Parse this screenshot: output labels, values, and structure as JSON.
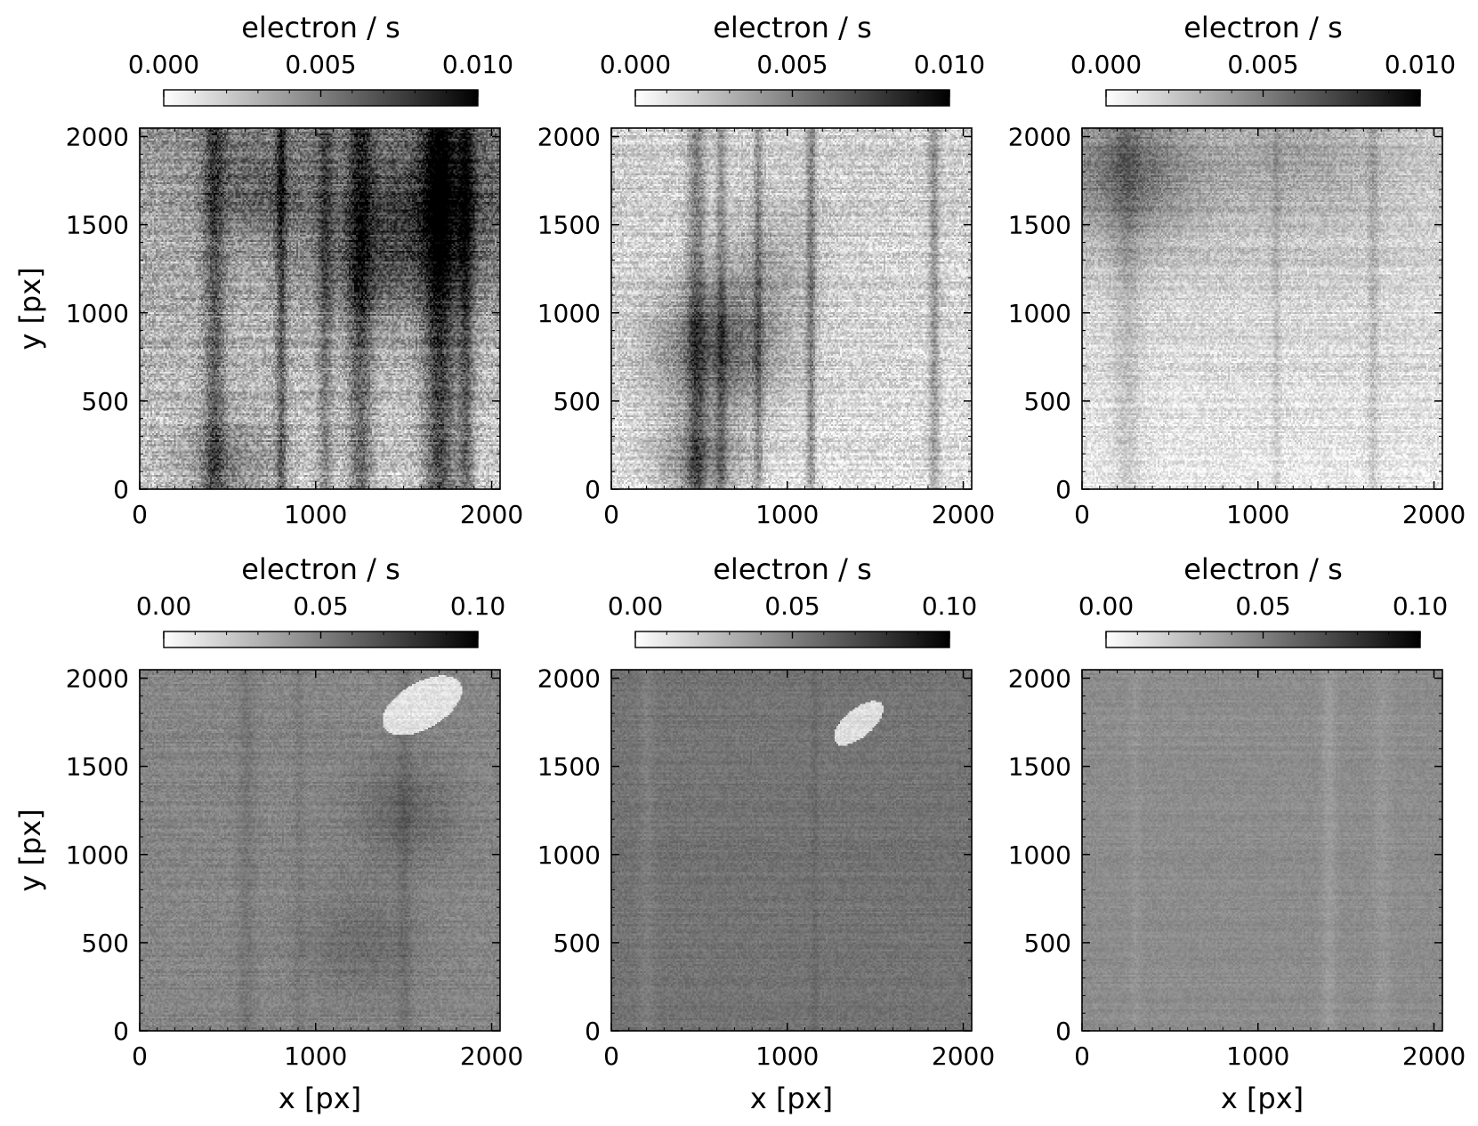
{
  "figure": {
    "background": "#ffffff",
    "colormap": [
      "#ffffff",
      "#000000"
    ],
    "x_axis_label": "x [px]",
    "y_axis_label": "y [px]",
    "colorbar_label": "electron / s"
  },
  "chart_data": [
    {
      "type": "heatmap",
      "row": 0,
      "col": 0,
      "xlim": [
        0,
        2048
      ],
      "ylim": [
        0,
        2048
      ],
      "x_ticks": [
        0,
        1000,
        2000
      ],
      "y_ticks": [
        0,
        500,
        1000,
        1500,
        2000
      ],
      "x_tick_labels": [
        "0",
        "1000",
        "2000"
      ],
      "y_tick_labels": [
        "0",
        "500",
        "1000",
        "1500",
        "2000"
      ],
      "colorbar": {
        "range": [
          0,
          0.01
        ],
        "ticks": [
          0,
          0.005,
          0.01
        ],
        "tick_labels": [
          "0.000",
          "0.005",
          "0.010"
        ],
        "label": "electron / s"
      },
      "xlabel": "",
      "ylabel": "y [px]",
      "pattern": {
        "base": 0.0022,
        "noise": 0.0035,
        "stripes": [
          [
            420,
            120,
            0.0032
          ],
          [
            800,
            60,
            0.0035
          ],
          [
            1050,
            80,
            0.0025
          ],
          [
            1250,
            140,
            0.0035
          ],
          [
            1700,
            180,
            0.0048
          ],
          [
            1850,
            90,
            0.0035
          ]
        ],
        "blobs": [
          [
            1700,
            1600,
            350,
            0.004
          ],
          [
            1300,
            1300,
            250,
            0.002
          ],
          [
            500,
            150,
            200,
            0.0025
          ],
          [
            700,
            1700,
            250,
            0.0025
          ]
        ],
        "gradient": [
          0,
          0.0018
        ]
      }
    },
    {
      "type": "heatmap",
      "row": 0,
      "col": 1,
      "xlim": [
        0,
        2048
      ],
      "ylim": [
        0,
        2048
      ],
      "x_ticks": [
        0,
        1000,
        2000
      ],
      "y_ticks": [
        0,
        500,
        1000,
        1500,
        2000
      ],
      "x_tick_labels": [
        "0",
        "1000",
        "2000"
      ],
      "y_tick_labels": [
        "0",
        "500",
        "1000",
        "1500",
        "2000"
      ],
      "colorbar": {
        "range": [
          0,
          0.01
        ],
        "ticks": [
          0,
          0.005,
          0.01
        ],
        "tick_labels": [
          "0.000",
          "0.005",
          "0.010"
        ],
        "label": "electron / s"
      },
      "xlabel": "",
      "ylabel": "",
      "pattern": {
        "base": 0.0012,
        "noise": 0.0028,
        "stripes": [
          [
            480,
            100,
            0.003
          ],
          [
            620,
            60,
            0.0025
          ],
          [
            830,
            50,
            0.0025
          ],
          [
            1130,
            50,
            0.003
          ],
          [
            1830,
            60,
            0.0025
          ]
        ],
        "blobs": [
          [
            600,
            800,
            260,
            0.0045
          ],
          [
            500,
            150,
            180,
            0.0035
          ],
          [
            900,
            1300,
            220,
            0.0015
          ]
        ],
        "gradient": [
          0,
          0.0008
        ]
      }
    },
    {
      "type": "heatmap",
      "row": 0,
      "col": 2,
      "xlim": [
        0,
        2048
      ],
      "ylim": [
        0,
        2048
      ],
      "x_ticks": [
        0,
        1000,
        2000
      ],
      "y_ticks": [
        0,
        500,
        1000,
        1500,
        2000
      ],
      "x_tick_labels": [
        "0",
        "1000",
        "2000"
      ],
      "y_tick_labels": [
        "0",
        "500",
        "1000",
        "1500",
        "2000"
      ],
      "colorbar": {
        "range": [
          0,
          0.01
        ],
        "ticks": [
          0,
          0.005,
          0.01
        ],
        "tick_labels": [
          "0.000",
          "0.005",
          "0.010"
        ],
        "label": "electron / s"
      },
      "xlabel": "",
      "ylabel": "",
      "pattern": {
        "base": 0.0008,
        "noise": 0.0022,
        "stripes": [
          [
            250,
            150,
            0.0012
          ],
          [
            1100,
            40,
            0.001
          ],
          [
            1650,
            60,
            0.0012
          ]
        ],
        "blobs": [
          [
            250,
            1800,
            300,
            0.0035
          ],
          [
            1200,
            1900,
            350,
            0.0015
          ]
        ],
        "gradient": [
          0,
          0.0015
        ]
      }
    },
    {
      "type": "heatmap",
      "row": 1,
      "col": 0,
      "xlim": [
        0,
        2048
      ],
      "ylim": [
        0,
        2048
      ],
      "x_ticks": [
        0,
        1000,
        2000
      ],
      "y_ticks": [
        0,
        500,
        1000,
        1500,
        2000
      ],
      "x_tick_labels": [
        "0",
        "1000",
        "2000"
      ],
      "y_tick_labels": [
        "0",
        "500",
        "1000",
        "1500",
        "2000"
      ],
      "colorbar": {
        "range": [
          0,
          0.1
        ],
        "ticks": [
          0,
          0.05,
          0.1
        ],
        "tick_labels": [
          "0.00",
          "0.05",
          "0.10"
        ],
        "label": "electron / s"
      },
      "xlabel": "x [px]",
      "ylabel": "y [px]",
      "pattern": {
        "base": 0.048,
        "noise": 0.012,
        "stripes": [
          [
            600,
            100,
            0.006
          ],
          [
            900,
            60,
            0.004
          ],
          [
            1500,
            80,
            0.006
          ]
        ],
        "blobs": [
          [
            1500,
            1250,
            200,
            0.012
          ],
          [
            1250,
            500,
            220,
            0.01
          ]
        ],
        "gradient": [
          0,
          0
        ],
        "patch": [
          [
            1600,
            1850,
            250,
            130,
            -30
          ]
        ]
      }
    },
    {
      "type": "heatmap",
      "row": 1,
      "col": 1,
      "xlim": [
        0,
        2048
      ],
      "ylim": [
        0,
        2048
      ],
      "x_ticks": [
        0,
        1000,
        2000
      ],
      "y_ticks": [
        0,
        500,
        1000,
        1500,
        2000
      ],
      "x_tick_labels": [
        "0",
        "1000",
        "2000"
      ],
      "y_tick_labels": [
        "0",
        "500",
        "1000",
        "1500",
        "2000"
      ],
      "colorbar": {
        "range": [
          0,
          0.1
        ],
        "ticks": [
          0,
          0.05,
          0.1
        ],
        "tick_labels": [
          "0.00",
          "0.05",
          "0.10"
        ],
        "label": "electron / s"
      },
      "xlabel": "x [px]",
      "ylabel": "",
      "pattern": {
        "base": 0.055,
        "noise": 0.01,
        "stripes": [
          [
            1150,
            40,
            0.004
          ],
          [
            200,
            80,
            -0.004
          ]
        ],
        "blobs": [],
        "gradient": [
          0,
          0
        ],
        "patch": [
          [
            1400,
            1750,
            170,
            80,
            -40
          ]
        ]
      }
    },
    {
      "type": "heatmap",
      "row": 1,
      "col": 2,
      "xlim": [
        0,
        2048
      ],
      "ylim": [
        0,
        2048
      ],
      "x_ticks": [
        0,
        1000,
        2000
      ],
      "y_ticks": [
        0,
        500,
        1000,
        1500,
        2000
      ],
      "x_tick_labels": [
        "0",
        "1000",
        "2000"
      ],
      "y_tick_labels": [
        "0",
        "500",
        "1000",
        "1500",
        "2000"
      ],
      "colorbar": {
        "range": [
          0,
          0.1
        ],
        "ticks": [
          0,
          0.05,
          0.1
        ],
        "tick_labels": [
          "0.00",
          "0.05",
          "0.10"
        ],
        "label": "electron / s"
      },
      "xlabel": "x [px]",
      "ylabel": "",
      "pattern": {
        "base": 0.045,
        "noise": 0.008,
        "stripes": [
          [
            1400,
            80,
            -0.006
          ],
          [
            1700,
            100,
            -0.004
          ],
          [
            300,
            60,
            -0.003
          ]
        ],
        "blobs": [],
        "gradient": [
          0,
          0
        ],
        "patch": []
      }
    }
  ]
}
